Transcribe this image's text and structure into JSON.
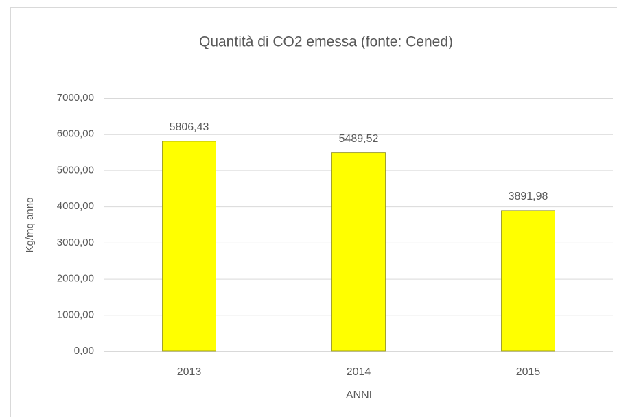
{
  "chart_data": {
    "type": "bar",
    "title": "Quantità di CO2 emessa (fonte: Cened)",
    "x_label": "ANNI",
    "y_label": "Kg/mq anno",
    "categories": [
      "2013",
      "2014",
      "2015"
    ],
    "values": [
      5806.43,
      5489.52,
      3891.98
    ],
    "value_labels": [
      "5806,43",
      "5489,52",
      "3891,98"
    ],
    "color": "#ffff00",
    "ylim": [
      0,
      7000
    ],
    "yticks": [
      {
        "value": 0,
        "label": "0,00"
      },
      {
        "value": 1000,
        "label": "1000,00"
      },
      {
        "value": 2000,
        "label": "2000,00"
      },
      {
        "value": 3000,
        "label": "3000,00"
      },
      {
        "value": 4000,
        "label": "4000,00"
      },
      {
        "value": 5000,
        "label": "5000,00"
      },
      {
        "value": 6000,
        "label": "6000,00"
      },
      {
        "value": 7000,
        "label": "7000,00"
      }
    ],
    "grid": true
  }
}
